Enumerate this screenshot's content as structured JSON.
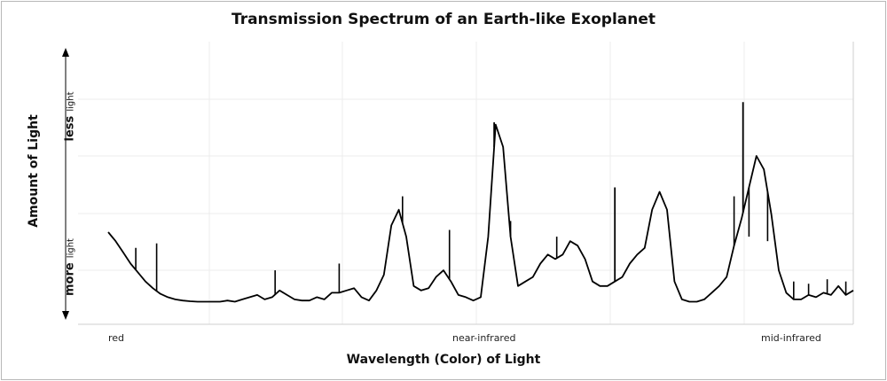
{
  "chart_data": {
    "type": "line",
    "title": "Transmission Spectrum of an Earth-like Exoplanet",
    "xlabel": "Wavelength (Color) of Light",
    "ylabel": "Amount of Light",
    "y_top_label": {
      "bold": "less",
      "small": "light"
    },
    "y_bottom_label": {
      "bold": "more",
      "small": "light"
    },
    "x_tick_labels": [
      "red",
      "near-infrared",
      "mid-infrared"
    ],
    "xlim": [
      0,
      100
    ],
    "ylim": [
      0,
      100
    ],
    "grid": true,
    "series": [
      {
        "x": [
          0,
          1,
          2,
          3,
          4,
          5,
          6,
          7,
          8,
          9,
          10,
          11,
          12,
          13,
          14,
          15,
          16,
          17,
          18,
          19,
          20,
          21,
          22,
          23,
          24,
          25,
          26,
          27,
          28,
          29,
          30,
          31,
          32,
          33,
          34,
          35,
          36,
          37,
          38,
          39,
          40,
          41,
          42,
          43,
          44,
          45,
          46,
          47,
          48,
          49,
          50,
          51,
          52,
          53,
          54,
          55,
          56,
          57,
          58,
          59,
          60,
          61,
          62,
          63,
          64,
          65,
          66,
          67,
          68,
          69,
          70,
          71,
          72,
          73,
          74,
          75,
          76,
          77,
          78,
          79,
          80,
          81,
          82,
          83,
          84,
          85,
          86,
          87,
          88,
          89,
          90,
          91,
          92,
          93,
          94,
          95,
          96,
          97,
          98,
          99,
          100
        ],
        "y": [
          32,
          28,
          23,
          18,
          14,
          10,
          7,
          4.5,
          3,
          2,
          1.5,
          1.2,
          1,
          1,
          1,
          1,
          1.5,
          1,
          2,
          3,
          4,
          2,
          3,
          6,
          4,
          2,
          1.5,
          1.5,
          3,
          2,
          5,
          5,
          6,
          7,
          3,
          1.5,
          6,
          13,
          35,
          42,
          30,
          8,
          6,
          7,
          12,
          15,
          10,
          4,
          3,
          1.5,
          3,
          30,
          80,
          70,
          30,
          8,
          10,
          12,
          18,
          22,
          20,
          22,
          28,
          26,
          20,
          10,
          8,
          8,
          10,
          12,
          18,
          22,
          25,
          42,
          50,
          42,
          10,
          2,
          1,
          1,
          2,
          5,
          8,
          12,
          26,
          38,
          52,
          66,
          60,
          40,
          15,
          5,
          2,
          2,
          4,
          3,
          5,
          4,
          8,
          4,
          6
        ]
      }
    ],
    "spikes": [
      {
        "x": 3.7,
        "y": 25
      },
      {
        "x": 6.5,
        "y": 27
      },
      {
        "x": 22.4,
        "y": 15
      },
      {
        "x": 31.0,
        "y": 18
      },
      {
        "x": 39.5,
        "y": 48
      },
      {
        "x": 45.8,
        "y": 33
      },
      {
        "x": 54.0,
        "y": 37
      },
      {
        "x": 60.2,
        "y": 30
      },
      {
        "x": 86.0,
        "y": 30
      },
      {
        "x": 84.0,
        "y": 48
      },
      {
        "x": 88.5,
        "y": 28
      },
      {
        "x": 92.0,
        "y": 10
      },
      {
        "x": 94.0,
        "y": 9
      },
      {
        "x": 96.5,
        "y": 11
      },
      {
        "x": 99.0,
        "y": 10
      }
    ],
    "peak_tips": [
      {
        "x": 51.8,
        "y": 81
      },
      {
        "x": 68.0,
        "y": 52
      },
      {
        "x": 85.2,
        "y": 90
      }
    ]
  }
}
